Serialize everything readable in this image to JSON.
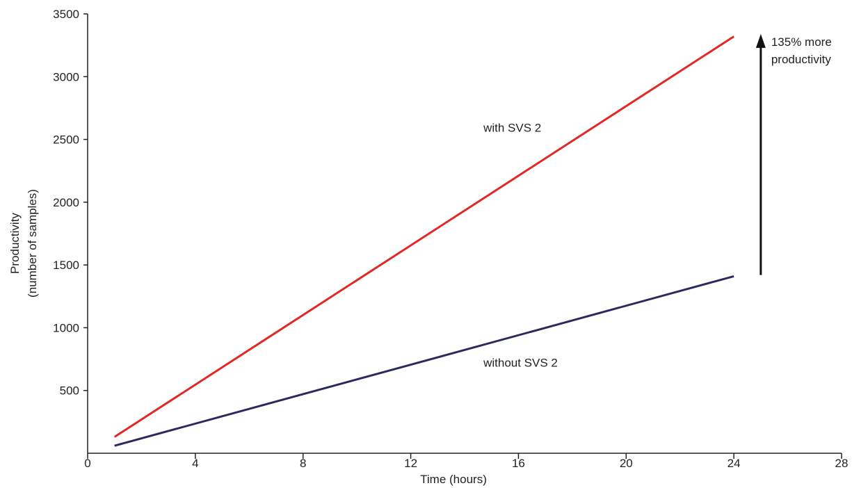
{
  "chart_data": {
    "type": "line",
    "xlabel": "Time (hours)",
    "ylabel": [
      "Productivity",
      "(number of samples)"
    ],
    "xlim": [
      0,
      28
    ],
    "ylim": [
      0,
      3500
    ],
    "xticks": [
      0,
      4,
      8,
      12,
      16,
      20,
      24,
      28
    ],
    "yticks": [
      500,
      1000,
      1500,
      2000,
      2500,
      3000,
      3500
    ],
    "grid": false,
    "series": [
      {
        "name": "with SVS 2",
        "color": "#e32626",
        "x": [
          1,
          24
        ],
        "y": [
          130,
          3320
        ]
      },
      {
        "name": "without SVS 2",
        "color": "#2b2a5e",
        "x": [
          1,
          24
        ],
        "y": [
          60,
          1410
        ]
      }
    ],
    "annotation": {
      "lines": [
        "135% more",
        "productivity"
      ],
      "arrow": {
        "x": 25,
        "y_from": 1420,
        "y_to": 3340
      },
      "color": "#111111"
    }
  }
}
